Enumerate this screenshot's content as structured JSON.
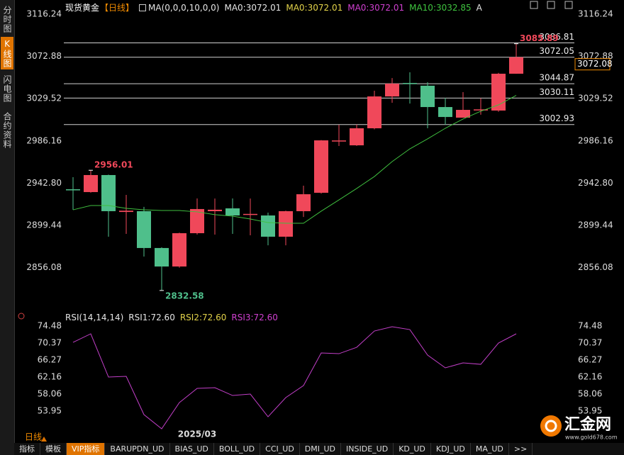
{
  "sidebar_tabs": [
    "分时图",
    "K线图",
    "闪电图",
    "合约资料"
  ],
  "chart_data": [
    {
      "type": "candlestick",
      "title": "现货黄金",
      "period": "【日线】",
      "indicator": "MA(0,0,0,10,0,0)",
      "legend": [
        {
          "text": "MA0:3072.01",
          "color": "#e6e6e6"
        },
        {
          "text": "MA0:3072.01",
          "color": "#e3d34a"
        },
        {
          "text": "MA0:3072.01",
          "color": "#d040d0"
        },
        {
          "text": "MA10:3032.85",
          "color": "#3fc43f"
        },
        {
          "text": "A",
          "color": "#e6e6e6"
        }
      ],
      "categories": [
        null,
        null,
        null,
        null,
        null,
        null,
        null,
        "2025/03",
        null,
        null,
        null,
        null,
        null,
        null,
        null,
        null,
        null,
        null,
        null,
        null,
        null,
        null,
        null,
        null,
        null,
        null
      ],
      "open": [
        2936.5,
        2933.6,
        2951.1,
        2913.2,
        2914.0,
        2876.2,
        2857.2,
        2891.4,
        2914.0,
        2916.9,
        2910.4,
        2909.6,
        2887.8,
        2914.0,
        2932.9,
        2985.9,
        2981.6,
        2999.1,
        3031.8,
        3045.6,
        3042.8,
        3020.9,
        3010.0,
        3018.0,
        3017.3,
        3055.1
      ],
      "high": [
        2948.9,
        2956.01,
        2951.5,
        2930.7,
        2918.4,
        2877.0,
        2892.0,
        2927.1,
        2927.0,
        2927.1,
        2927.0,
        2912.5,
        2914.5,
        2940.2,
        2987.0,
        3002.7,
        3002.93,
        3037.7,
        3050.7,
        3056.6,
        3046.4,
        3030.4,
        3036.2,
        3030.0,
        3056.0,
        3085.89
      ],
      "low": [
        2915.4,
        2933.0,
        2887.8,
        2890.7,
        2867.4,
        2832.58,
        2856.0,
        2890.0,
        2890.0,
        2890.7,
        2889.2,
        2879.0,
        2879.0,
        2908.1,
        2932.0,
        2980.9,
        2981.0,
        2998.0,
        3025.3,
        3024.5,
        2999.1,
        3002.7,
        3010.0,
        3013.0,
        3016.0,
        3055.0
      ],
      "close": [
        2935.8,
        2951.1,
        2914.0,
        2914.5,
        2876.2,
        2857.2,
        2891.4,
        2916.2,
        2915.5,
        2909.6,
        2911.2,
        2887.8,
        2914.0,
        2931.4,
        2986.7,
        2986.6,
        2999.1,
        3031.8,
        3044.9,
        3044.9,
        3020.9,
        3010.7,
        3018.0,
        3018.5,
        3055.1,
        3072.08
      ],
      "up_color": "#f0485a",
      "down_color": "#4fbf8b",
      "ma": {
        "color": "#3fbf3f",
        "values": [
          2915.4,
          2919.8,
          2919.8,
          2916.9,
          2915.4,
          2914.7,
          2914.7,
          2913.3,
          2910.4,
          2908.9,
          2906.0,
          2902.3,
          2901.6,
          2901.6,
          2914.0,
          2925.6,
          2937.3,
          2949.6,
          2964.9,
          2978.0,
          2988.2,
          2999.1,
          3008.6,
          3016.6,
          3023.1,
          3032.85
        ]
      },
      "price_lines": [
        3086.81,
        3072.05,
        3044.87,
        3030.11,
        3002.93
      ],
      "price_line_color": "#d0d0d0",
      "annotations": [
        2956.01,
        2832.58,
        3085.89
      ],
      "last_price": 3072.08,
      "ylim": [
        2816.49,
        3124.97
      ],
      "yticks": [
        2856.08,
        2899.44,
        {
          "value": 2942.8,
          "label": "2942.80"
        },
        2986.16,
        3029.52,
        3072.88,
        3116.24
      ]
    },
    {
      "type": "line",
      "title": "RSI(14,14,14)",
      "legend": [
        {
          "text": "RSI1:72.60",
          "color": "#e6e6e6"
        },
        {
          "text": "RSI2:72.60",
          "color": "#e3d34a"
        },
        {
          "text": "RSI3:72.60",
          "color": "#d040d0"
        }
      ],
      "series": [
        {
          "color": "#c23fc8",
          "values": [
            70.54,
            72.6,
            62.15,
            62.32,
            53.08,
            49.66,
            55.99,
            59.41,
            59.58,
            57.7,
            58.04,
            52.56,
            57.19,
            60.1,
            67.97,
            67.8,
            69.34,
            73.28,
            74.31,
            73.62,
            67.46,
            64.38,
            65.58,
            65.23,
            70.37,
            72.6
          ]
        }
      ],
      "ylim": [
        48.8,
        75.34
      ],
      "yticks": [
        53.95,
        58.06,
        62.16,
        66.27,
        70.37,
        74.48
      ]
    }
  ],
  "period_selector": "日线",
  "toolbar": [
    "指标",
    "模板",
    "VIP指标",
    "BARUPDN_UD",
    "BIAS_UD",
    "BOLL_UD",
    "CCI_UD",
    "DMI_UD",
    "INSIDE_UD",
    "KD_UD",
    "KDJ_UD",
    "MA_UD",
    ">>"
  ],
  "logo": {
    "name": "汇金网",
    "url": "www.gold678.com"
  }
}
